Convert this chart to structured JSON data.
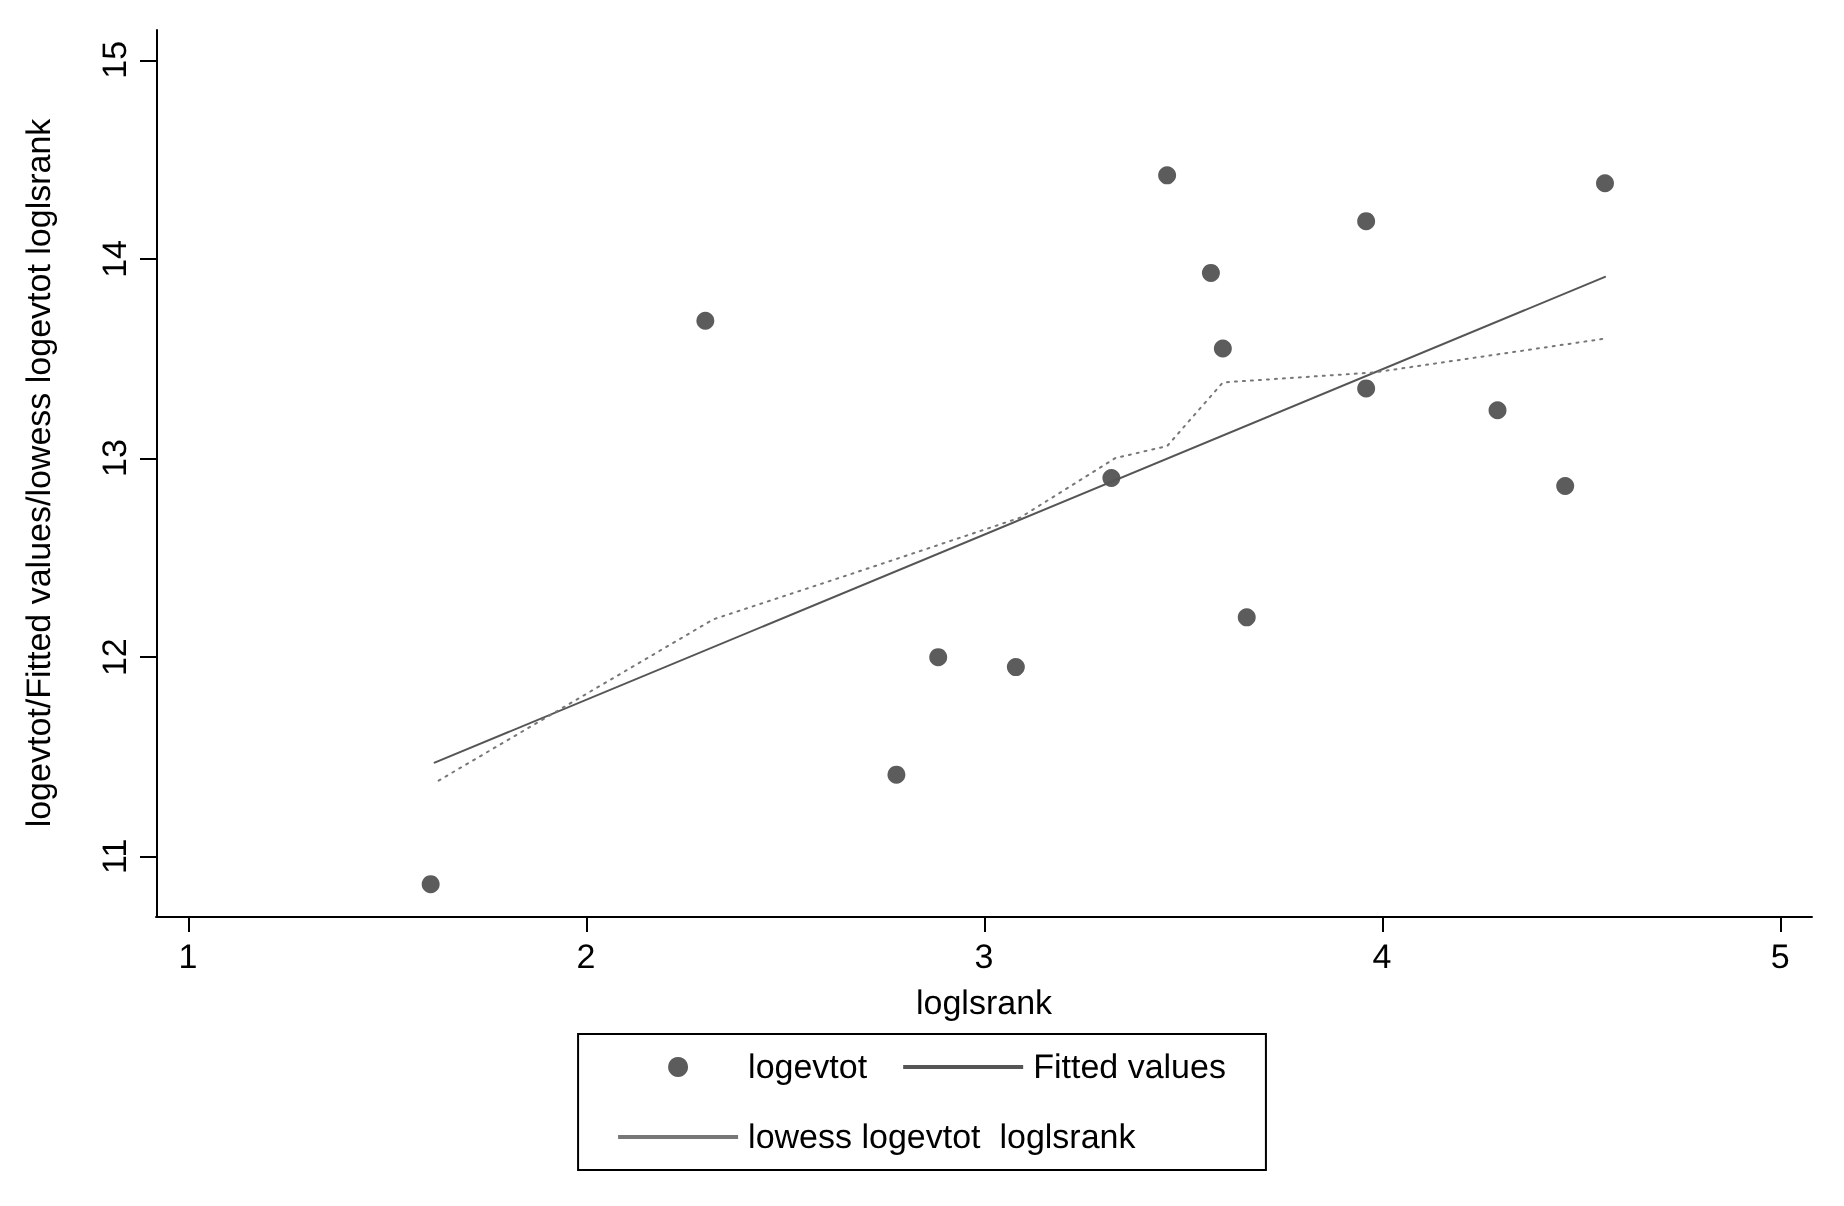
{
  "chart_data": {
    "type": "scatter",
    "xlabel": "loglsrank",
    "ylabel": "logevtot/Fitted values/lowess logevtot loglsrank",
    "xlim": [
      0.92,
      5.08
    ],
    "xticks": [
      1,
      2,
      3,
      4,
      5
    ],
    "ylim": [
      10.7,
      15.15
    ],
    "yticks": [
      11,
      12,
      13,
      14,
      15
    ],
    "grid": false,
    "legend": "bottom",
    "series": [
      {
        "name": "logevtot",
        "marker": "circle",
        "color": "#333333",
        "x": [
          1.61,
          2.3,
          2.78,
          2.885,
          3.08,
          3.32,
          3.46,
          3.57,
          3.6,
          3.66,
          3.96,
          3.96,
          4.29,
          4.46,
          4.56
        ],
        "values": [
          10.86,
          13.69,
          11.41,
          12.0,
          11.95,
          12.9,
          14.42,
          13.93,
          13.55,
          12.2,
          14.19,
          13.35,
          13.24,
          12.86,
          14.38
        ]
      },
      {
        "name": "Fitted values",
        "type": "line",
        "marker": "none",
        "line_style": "solid",
        "color": "#555555",
        "x": [
          1.62,
          4.56
        ],
        "values": [
          11.47,
          13.91
        ]
      },
      {
        "name": "lowess logevtot  loglsrank",
        "type": "line",
        "marker": "none",
        "line_style": "dotted",
        "color": "#777777",
        "x": [
          1.63,
          2.32,
          2.73,
          3.09,
          3.33,
          3.46,
          3.6,
          3.98,
          4.56
        ],
        "values": [
          11.38,
          12.19,
          12.46,
          12.7,
          13.0,
          13.06,
          13.38,
          13.43,
          13.6
        ]
      }
    ]
  }
}
